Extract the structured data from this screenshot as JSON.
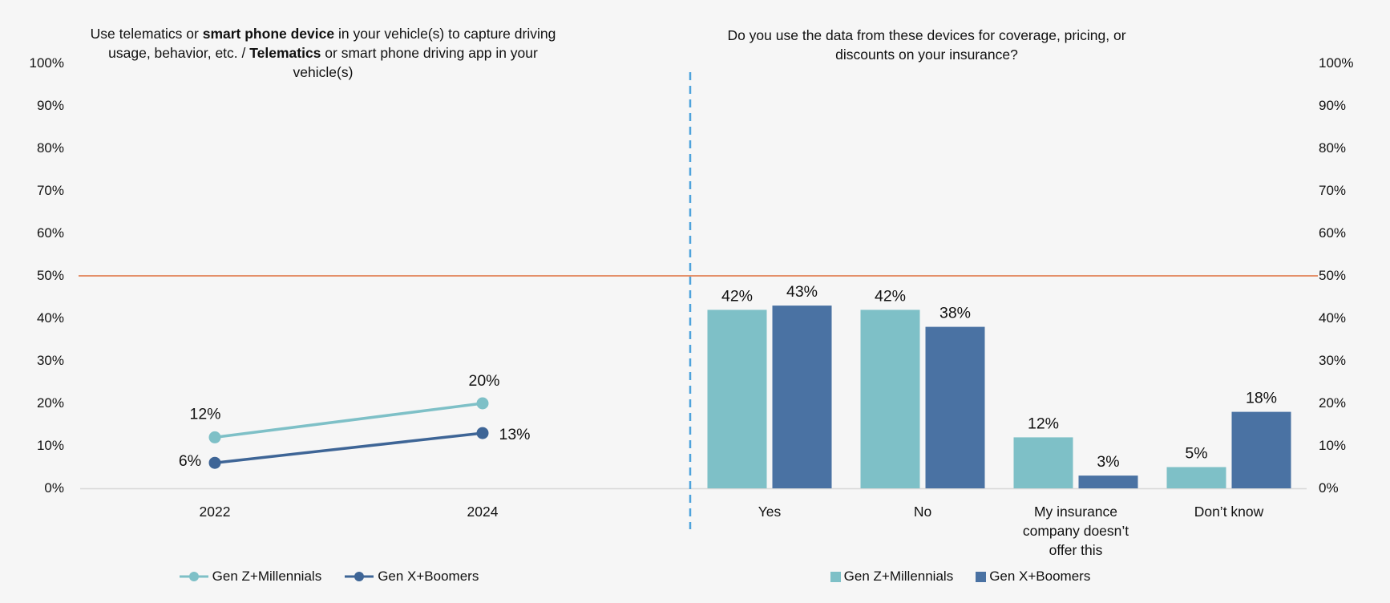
{
  "colors": {
    "gen_z_millennials": "#7EC0C7",
    "gen_x_boomers_bar": "#4A72A3",
    "gen_x_boomers_line": "#3E6596",
    "reference_line": "#DE6E3C",
    "divider": "#4FA3DC",
    "axis_line": "#D8D8D8",
    "text": "#111111",
    "background": "#F6F6F6"
  },
  "y_axis": {
    "tick_labels": [
      "100%",
      "90%",
      "80%",
      "70%",
      "60%",
      "50%",
      "40%",
      "30%",
      "20%",
      "10%",
      "0%"
    ],
    "tick_values": [
      100,
      90,
      80,
      70,
      60,
      50,
      40,
      30,
      20,
      10,
      0
    ],
    "shown_on": "both sides"
  },
  "reference_line": {
    "value": 50
  },
  "divider": {
    "style": "dashed-vertical"
  },
  "chart_data": [
    {
      "type": "line",
      "title": "Use telematics or smart phone device in your vehicle(s) to capture driving usage, behavior, etc. / Telematics or smart phone driving app in your vehicle(s)",
      "title_segments": [
        {
          "text": "Use telematics or ",
          "bold": false
        },
        {
          "text": "smart phone device",
          "bold": true
        },
        {
          "text": " in your vehicle(s) to capture driving usage, behavior, etc. / ",
          "bold": false
        },
        {
          "text": "Telematics",
          "bold": true
        },
        {
          "text": " or smart phone driving app in your vehicle(s)",
          "bold": false
        }
      ],
      "categories": [
        "2022",
        "2024"
      ],
      "series": [
        {
          "name": "Gen Z+Millennials",
          "values": [
            12,
            20
          ],
          "data_labels": [
            "12%",
            "20%"
          ],
          "color": "#7EC0C7"
        },
        {
          "name": "Gen X+Boomers",
          "values": [
            6,
            13
          ],
          "data_labels": [
            "6%",
            "13%"
          ],
          "color": "#3E6596"
        }
      ],
      "ylim": [
        0,
        100
      ],
      "grid": false,
      "legend_position": "bottom"
    },
    {
      "type": "bar",
      "title": "Do you use the data from these devices for coverage, pricing, or discounts on your insurance?",
      "categories": [
        "Yes",
        "No",
        "My insurance company doesn’t offer this",
        "Don’t know"
      ],
      "series": [
        {
          "name": "Gen Z+Millennials",
          "values": [
            42,
            42,
            12,
            5
          ],
          "data_labels": [
            "42%",
            "42%",
            "12%",
            "5%"
          ],
          "color": "#7EC0C7"
        },
        {
          "name": "Gen X+Boomers",
          "values": [
            43,
            38,
            3,
            18
          ],
          "data_labels": [
            "43%",
            "38%",
            "3%",
            "18%"
          ],
          "color": "#4A72A3"
        }
      ],
      "ylim": [
        0,
        100
      ],
      "grid": false,
      "legend_position": "bottom"
    }
  ]
}
